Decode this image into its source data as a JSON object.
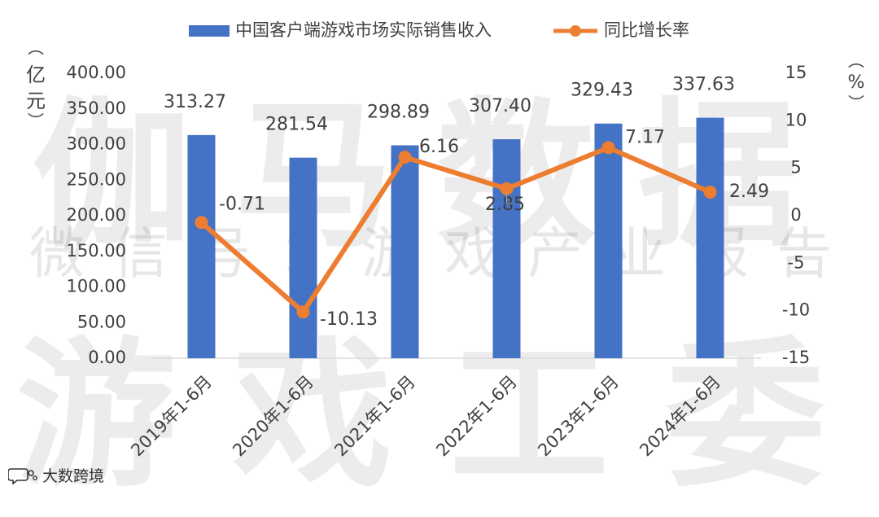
{
  "watermark": {
    "line1": "伽马数据",
    "line2": "微信号：游戏产业报告",
    "line3": "游戏工委"
  },
  "branding": {
    "text": "大数跨境",
    "icon": "speech-bubble-icon"
  },
  "colors": {
    "bar": "#4472C4",
    "line": "#ED7D31",
    "axis_text": "#404040",
    "axis_line": "#D9D9D9"
  },
  "chart_data": {
    "type": "bar",
    "categories": [
      "2019年1-6月",
      "2020年1-6月",
      "2021年1-6月",
      "2022年1-6月",
      "2023年1-6月",
      "2024年1-6月"
    ],
    "series": [
      {
        "name": "中国客户端游戏市场实际销售收入",
        "type": "bar",
        "axis": "left",
        "values": [
          313.27,
          281.54,
          298.89,
          307.4,
          329.43,
          337.63
        ],
        "labels": [
          "313.27",
          "281.54",
          "298.89",
          "307.40",
          "329.43",
          "337.63"
        ]
      },
      {
        "name": "同比增长率",
        "type": "line",
        "axis": "right",
        "values": [
          -0.71,
          -10.13,
          6.16,
          2.85,
          7.17,
          2.49
        ],
        "labels": [
          "-0.71",
          "-10.13",
          "6.16",
          "2.85",
          "7.17",
          "2.49"
        ]
      }
    ],
    "left_axis": {
      "label": "亿元",
      "ylim": [
        0,
        400
      ],
      "ticks": [
        "0.00",
        "50.00",
        "100.00",
        "150.00",
        "200.00",
        "250.00",
        "300.00",
        "350.00",
        "400.00"
      ]
    },
    "right_axis": {
      "label": "%",
      "ylim": [
        -15,
        15
      ],
      "ticks": [
        "-15",
        "-10",
        "-5",
        "0",
        "5",
        "10",
        "15"
      ]
    },
    "legend_position": "top-center",
    "grid": false
  }
}
